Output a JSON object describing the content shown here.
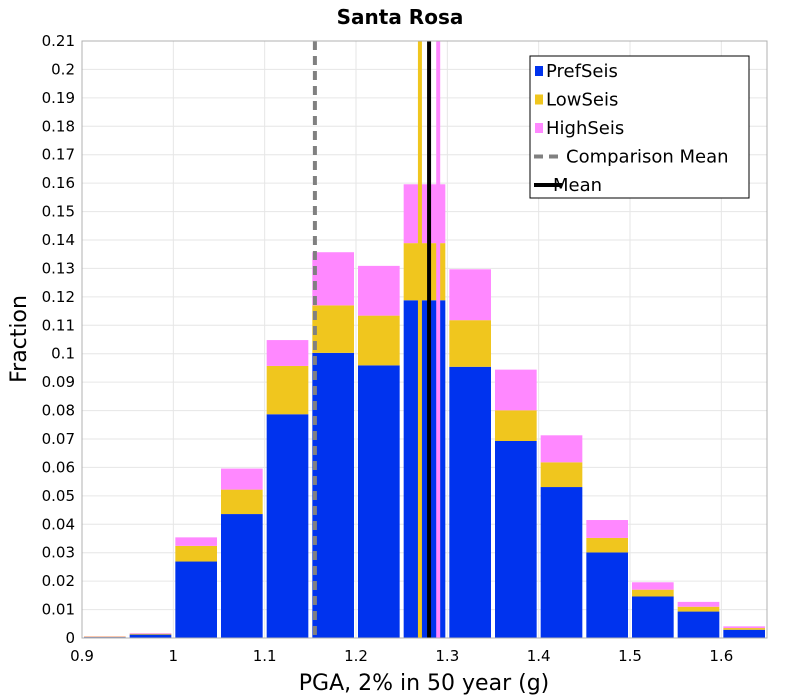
{
  "chart_data": {
    "type": "bar",
    "stacked": true,
    "title": "Santa Rosa",
    "xlabel": "PGA, 2% in 50 year (g)",
    "ylabel": "Fraction",
    "xlim": [
      0.9,
      1.65
    ],
    "ylim": [
      0,
      0.21
    ],
    "xticks": [
      "0.9",
      "1",
      "1.1",
      "1.2",
      "1.3",
      "1.4",
      "1.5",
      "1.6"
    ],
    "xtick_values": [
      0.9,
      1.0,
      1.1,
      1.2,
      1.3,
      1.4,
      1.5,
      1.6
    ],
    "yticks": [
      "0",
      "0.01",
      "0.02",
      "0.03",
      "0.04",
      "0.05",
      "0.06",
      "0.07",
      "0.08",
      "0.09",
      "0.1",
      "0.11",
      "0.12",
      "0.13",
      "0.14",
      "0.15",
      "0.16",
      "0.17",
      "0.18",
      "0.19",
      "0.2",
      "0.21"
    ],
    "ytick_values": [
      0,
      0.01,
      0.02,
      0.03,
      0.04,
      0.05,
      0.06,
      0.07,
      0.08,
      0.09,
      0.1,
      0.11,
      0.12,
      0.13,
      0.14,
      0.15,
      0.16,
      0.17,
      0.18,
      0.19,
      0.2,
      0.21
    ],
    "bin_width": 0.05,
    "bin_centers": [
      0.925,
      0.975,
      1.025,
      1.075,
      1.125,
      1.175,
      1.225,
      1.275,
      1.325,
      1.375,
      1.425,
      1.475,
      1.525,
      1.575,
      1.625
    ],
    "series": [
      {
        "name": "PrefSeis",
        "color": "#0033ee",
        "values": [
          0.0003,
          0.0012,
          0.0269,
          0.0436,
          0.0787,
          0.1003,
          0.0959,
          0.1188,
          0.0954,
          0.0693,
          0.0531,
          0.0301,
          0.0146,
          0.0093,
          0.0029
        ]
      },
      {
        "name": "LowSeis",
        "color": "#f0c61e",
        "values": [
          0.0002,
          0.0003,
          0.0055,
          0.0086,
          0.017,
          0.0167,
          0.0175,
          0.0201,
          0.0164,
          0.0108,
          0.0087,
          0.0051,
          0.0024,
          0.0017,
          0.0006
        ]
      },
      {
        "name": "HighSeis",
        "color": "#ff88ff",
        "values": [
          0.0001,
          0.0002,
          0.003,
          0.0074,
          0.0091,
          0.0187,
          0.0175,
          0.0207,
          0.0179,
          0.0143,
          0.0095,
          0.0063,
          0.0026,
          0.0017,
          0.0006
        ]
      }
    ],
    "lines": [
      {
        "name": "Comparison Mean",
        "x": 1.155,
        "color": "#808080",
        "style": "dashed"
      },
      {
        "name": "Mean",
        "x": 1.28,
        "color": "#000000",
        "style": "solid"
      }
    ],
    "extra_mean_lines": [
      {
        "series": "LowSeis",
        "x": 1.27,
        "color": "#f0c61e"
      },
      {
        "series": "HighSeis",
        "x": 1.29,
        "color": "#ff88ff"
      }
    ],
    "legend": {
      "placement": "top-right",
      "items": [
        {
          "label": "PrefSeis",
          "kind": "box",
          "color": "#0033ee"
        },
        {
          "label": "LowSeis",
          "kind": "box",
          "color": "#f0c61e"
        },
        {
          "label": "HighSeis",
          "kind": "box",
          "color": "#ff88ff"
        },
        {
          "label": "Comparison Mean",
          "kind": "dashed",
          "color": "#808080"
        },
        {
          "label": "Mean",
          "kind": "solid",
          "color": "#000000"
        }
      ]
    },
    "grid": true
  }
}
